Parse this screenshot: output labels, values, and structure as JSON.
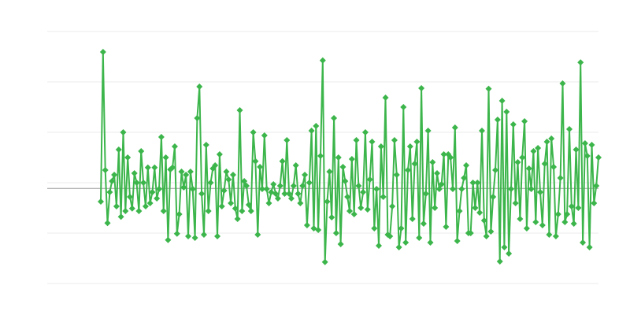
{
  "chart_data": {
    "type": "line",
    "title": "",
    "xlabel": "",
    "ylabel": "",
    "ylim": [
      -16,
      24
    ],
    "gridlines": [
      -16,
      -8,
      0,
      8,
      16,
      24
    ],
    "baseline": -0.9,
    "grid": true,
    "legend": "none",
    "marker": "diamond",
    "colors": {
      "series": "#3cb54b",
      "grid": "#ebebeb",
      "baseline": "#9e9e9e"
    },
    "series": [
      {
        "values": [
          -3,
          20.75,
          2,
          -6.4,
          -1.5,
          0.25,
          1.25,
          -3.75,
          5.25,
          -5.4,
          8,
          -4.5,
          4,
          -2.25,
          -4.1,
          1.5,
          0,
          -4.5,
          5,
          0,
          -3.75,
          2.4,
          -3.25,
          -1.5,
          2.4,
          -2.5,
          -1,
          7.25,
          -4.5,
          4,
          -9.1,
          2.1,
          2.4,
          5.75,
          -8.1,
          -5,
          1.75,
          -0.75,
          1.25,
          -8.5,
          1.75,
          -1,
          -8.75,
          10.25,
          15.25,
          -1.75,
          -8.25,
          6,
          -4.5,
          0,
          2.25,
          2.75,
          -8.5,
          4.5,
          -3.75,
          -1.25,
          1.75,
          0.5,
          -3.25,
          1.25,
          -4.1,
          -5.75,
          11.5,
          -4.5,
          0.25,
          -0.5,
          -3.5,
          -4.5,
          8,
          3.4,
          -8.25,
          2.5,
          -1,
          7.5,
          -1,
          -3.25,
          -1.5,
          -0.25,
          -1.75,
          -2.5,
          -0.5,
          3.4,
          -1.75,
          6.75,
          -1.75,
          -2.5,
          -0.5,
          2.75,
          -1.75,
          -3.25,
          -0.5,
          1.25,
          -6.75,
          0,
          8.25,
          -7.25,
          9,
          -7.5,
          4.25,
          19.4,
          -12.6,
          -3,
          1.75,
          -5.5,
          10.25,
          -8,
          4,
          -9.75,
          2.5,
          0.25,
          -2.25,
          -4.5,
          3.75,
          -5,
          6.75,
          -0.5,
          -4,
          -1.5,
          8,
          -4.25,
          0.5,
          6.5,
          -7.25,
          -1,
          -10,
          5.75,
          -2.25,
          13.5,
          -8.25,
          -8.5,
          -3.75,
          6.75,
          1.25,
          -10.25,
          -7.25,
          12,
          -9.5,
          2,
          5.75,
          -5.75,
          3,
          6.5,
          -8.75,
          15,
          -6.5,
          -1.75,
          8.25,
          -9.5,
          3.25,
          -4,
          1.5,
          -1,
          -0.25,
          4.5,
          -7,
          4.5,
          4,
          -1,
          8.75,
          -9.25,
          -4.5,
          -1,
          0.75,
          2.75,
          -8,
          -8,
          0,
          -4,
          0,
          -4.75,
          8.25,
          -6,
          -8.5,
          14.9,
          -7.75,
          -2.25,
          2,
          10,
          -12.5,
          13,
          -10.25,
          11.25,
          -11.25,
          -1,
          9.25,
          -3.25,
          3.25,
          -5.75,
          4,
          9.75,
          -7.25,
          2.25,
          -1,
          5,
          -6.25,
          5.5,
          -1.5,
          -6.75,
          3,
          6.5,
          -8.25,
          7,
          2.5,
          -8.5,
          -5,
          0.75,
          15.75,
          -6.25,
          -5,
          8.5,
          -3.75,
          -6.5,
          5.25,
          -4,
          19.1,
          -9.5,
          6.25,
          4.25,
          -10.25,
          6,
          -3.25,
          -0.5,
          4
        ]
      }
    ]
  }
}
